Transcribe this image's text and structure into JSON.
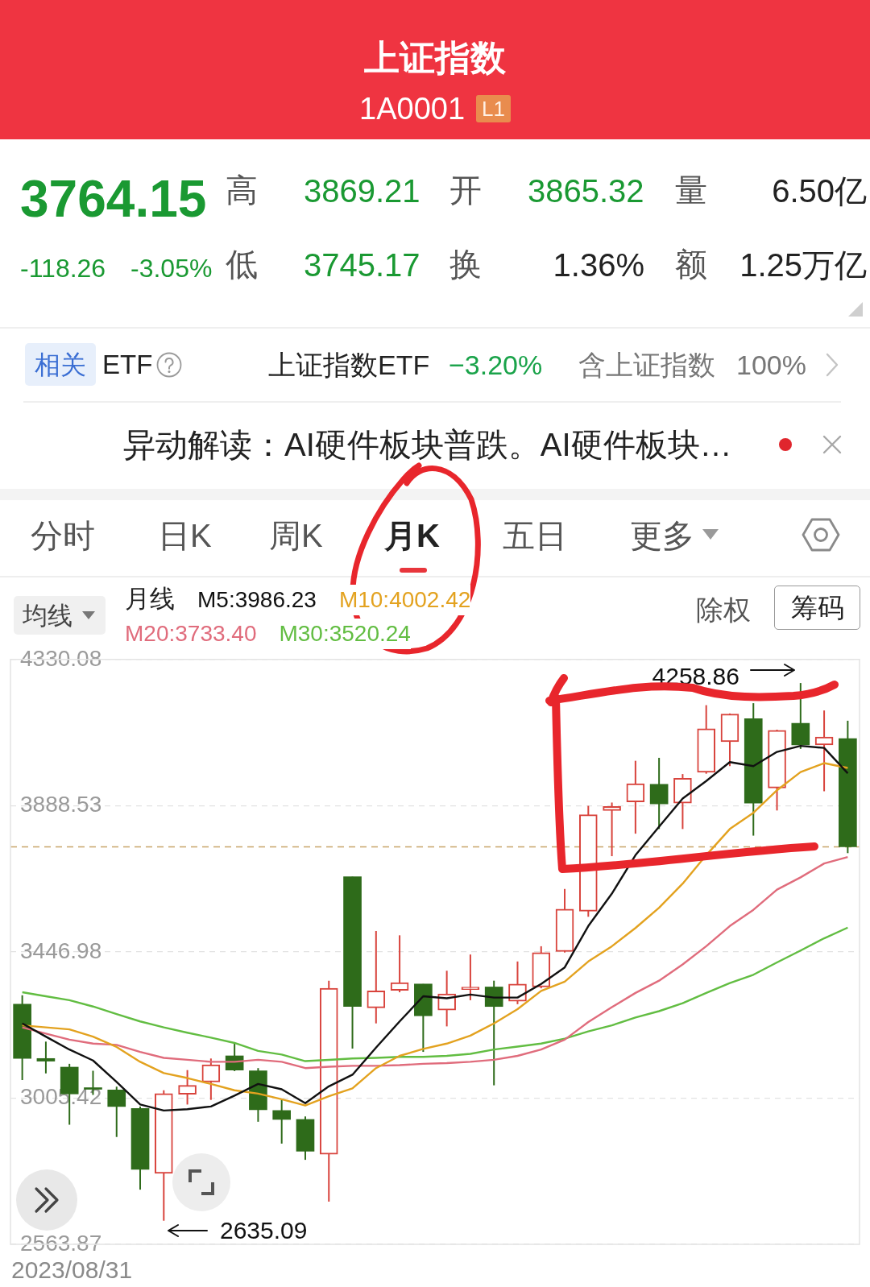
{
  "chart_data": {
    "type": "candlestick",
    "title": "上证指数",
    "subtitle": "1A0001",
    "categories": [
      null,
      null,
      null,
      null,
      null,
      null,
      null,
      null,
      null,
      null,
      null,
      null,
      null,
      null,
      null,
      null,
      null,
      null,
      null,
      null,
      null,
      null,
      null,
      null,
      null,
      null,
      null,
      null,
      null,
      null,
      null,
      null,
      null,
      null,
      null,
      null
    ],
    "series": [
      {
        "ohlc": [
          [
            3289,
            3316,
            3060,
            3125
          ],
          [
            3125,
            3176,
            3080,
            3117
          ],
          [
            3099,
            3109,
            2925,
            3018
          ],
          [
            3036,
            3088,
            3015,
            3032
          ],
          [
            3030,
            3040,
            2888,
            2980
          ],
          [
            2974,
            2980,
            2729,
            2790
          ],
          [
            2778,
            3029,
            2635.09,
            3019
          ],
          [
            3017,
            3090,
            2986,
            3044
          ],
          [
            3054,
            3125,
            3000,
            3106
          ],
          [
            3133,
            3170,
            3087,
            3090
          ],
          [
            3088,
            3096,
            2934,
            2970
          ],
          [
            2968,
            3000,
            2868,
            2941
          ],
          [
            2941,
            2950,
            2819,
            2845
          ],
          [
            2836,
            3360,
            2693,
            3337
          ],
          [
            3674,
            3674,
            3155,
            3282
          ],
          [
            3278,
            3510,
            3231,
            3329
          ],
          [
            3331,
            3497,
            3325,
            3354
          ],
          [
            3350,
            3350,
            3145,
            3254
          ],
          [
            3271,
            3390,
            3222,
            3320
          ],
          [
            3333,
            3439,
            3301,
            3341
          ],
          [
            3341,
            3360,
            3044,
            3282
          ],
          [
            3298,
            3418,
            3289,
            3350
          ],
          [
            3341,
            3464,
            3337,
            3445
          ],
          [
            3448,
            3637,
            3445,
            3576
          ],
          [
            3570,
            3888,
            3553,
            3861
          ],
          [
            3874,
            3898,
            3736,
            3886
          ],
          [
            3900,
            4024,
            3804,
            3955
          ],
          [
            3953,
            4033,
            3818,
            3894
          ],
          [
            3896,
            3984,
            3818,
            3971
          ],
          [
            3989,
            4192,
            3985,
            4121
          ],
          [
            4082,
            4167,
            4008,
            4165
          ],
          [
            4151,
            4198,
            3798,
            3896
          ],
          [
            3942,
            4118,
            3874,
            4116
          ],
          [
            4137,
            4258.86,
            4060,
            4072
          ],
          [
            4072,
            4176,
            3932,
            4096
          ],
          [
            4091,
            4145,
            3745.17,
            3764.15
          ]
        ],
        "colors": [
          "#2e6b1a",
          "#2e6b1a",
          "#2e6b1a",
          "#2e6b1a",
          "#2e6b1a",
          "#2e6b1a",
          "#d8433c",
          "#d8433c",
          "#d8433c",
          "#2e6b1a",
          "#2e6b1a",
          "#2e6b1a",
          "#2e6b1a",
          "#d8433c",
          "#2e6b1a",
          "#d8433c",
          "#d8433c",
          "#2e6b1a",
          "#d8433c",
          "#d8433c",
          "#2e6b1a",
          "#d8433c",
          "#d8433c",
          "#d8433c",
          "#d8433c",
          "#d8433c",
          "#d8433c",
          "#2e6b1a",
          "#d8433c",
          "#d8433c",
          "#d8433c",
          "#2e6b1a",
          "#d8433c",
          "#2e6b1a",
          "#d8433c",
          "#2e6b1a"
        ]
      },
      {
        "type": "line",
        "name": "M5:3986.23",
        "color": "#111111",
        "values": [
          3231,
          3191,
          3152,
          3119,
          3054,
          2986,
          2968,
          2972,
          2980,
          3013,
          3048,
          3032,
          2990,
          3041,
          3076,
          3158,
          3237,
          3313,
          3307,
          3318,
          3309,
          3309,
          3350,
          3400,
          3525,
          3623,
          3739,
          3825,
          3910,
          3963,
          4020,
          4008,
          4051,
          4069,
          4063,
          3986.23
        ]
      },
      {
        "type": "line",
        "name": "M10:4002.42",
        "color": "#e3a21f",
        "values": [
          3225,
          3219,
          3213,
          3191,
          3160,
          3115,
          3081,
          3066,
          3048,
          3029,
          3019,
          3002,
          2983,
          3011,
          3035,
          3096,
          3133,
          3154,
          3170,
          3194,
          3231,
          3274,
          3329,
          3357,
          3418,
          3464,
          3519,
          3580,
          3653,
          3739,
          3818,
          3867,
          3935,
          3990,
          4017,
          4002.42
        ]
      },
      {
        "type": "line",
        "name": "M20:3733.40",
        "color": "#e06c7c",
        "values": [
          3219,
          3200,
          3182,
          3170,
          3166,
          3145,
          3127,
          3121,
          3115,
          3115,
          3121,
          3115,
          3096,
          3100,
          3103,
          3103,
          3105,
          3109,
          3111,
          3115,
          3121,
          3133,
          3152,
          3182,
          3235,
          3280,
          3323,
          3360,
          3409,
          3464,
          3525,
          3574,
          3635,
          3672,
          3714,
          3733.4
        ]
      },
      {
        "type": "line",
        "name": "M30:3520.24",
        "color": "#62bd42",
        "values": [
          3325,
          3313,
          3301,
          3282,
          3259,
          3237,
          3219,
          3203,
          3188,
          3172,
          3148,
          3137,
          3117,
          3121,
          3125,
          3127,
          3130,
          3130,
          3133,
          3139,
          3152,
          3161,
          3170,
          3185,
          3207,
          3225,
          3249,
          3268,
          3292,
          3323,
          3353,
          3378,
          3415,
          3451,
          3488,
          3520.24
        ]
      }
    ],
    "ylim": [
      2563.87,
      4330.08
    ],
    "yticks": [
      4330.08,
      3888.53,
      3446.98,
      3005.42,
      2563.87
    ],
    "grid": "y",
    "marker": "none",
    "legend": "top left",
    "legend_title": "月线",
    "tick_labels": "y",
    "ref_lines": [
      {
        "axis": "y",
        "value": 3764.15,
        "color": "#c8a56a",
        "line_style": "dashed"
      }
    ],
    "annotations": [
      "L1",
      "3764.15",
      "高",
      "3869.21",
      "开",
      "3865.32",
      "量",
      "6.50亿",
      "-118.26",
      "-3.05%",
      "低",
      "3745.17",
      "换",
      "1.36%",
      "额",
      "1.25万亿",
      "相关",
      "ETF",
      "上证指数ETF",
      "−3.20%",
      "含上证指数",
      "100%",
      "异动解读：AI硬件板块普跌。AI硬件板块…",
      "分时",
      "日K",
      "周K",
      "月K",
      "五日",
      "更多",
      "均线",
      "除权",
      "筹码",
      "4258.86",
      "2635.09",
      "2023/08/31"
    ]
  }
}
